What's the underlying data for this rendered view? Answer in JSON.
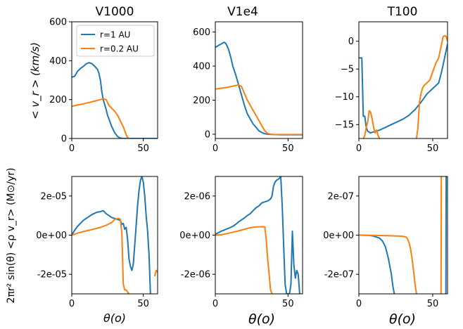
{
  "chart_data": [
    {
      "id": "v1000_vr",
      "type": "line",
      "title": "V1000",
      "ylabel": "< v_r > (km/s)",
      "xlabel": "",
      "xlim": [
        0,
        60
      ],
      "ylim": [
        0,
        600
      ],
      "xticks": [
        0,
        50
      ],
      "xtick_labels": [
        "0",
        "50"
      ],
      "yticks": [
        0,
        200,
        400,
        600
      ],
      "ytick_labels": [
        "0",
        "200",
        "400",
        "600"
      ],
      "legend": {
        "placement": "top-left",
        "entries": [
          "r=1 AU",
          "r=0.2 AU"
        ]
      },
      "series": [
        {
          "name": "r=1 AU",
          "color": "#1f77b4",
          "x": [
            0,
            2,
            4,
            6,
            8,
            10,
            12,
            14,
            16,
            18,
            19,
            20,
            21,
            22,
            23,
            24,
            25,
            26,
            27,
            28,
            30,
            32,
            34,
            36,
            40,
            50,
            60
          ],
          "y": [
            315,
            320,
            345,
            360,
            370,
            383,
            390,
            385,
            372,
            355,
            335,
            300,
            240,
            200,
            175,
            150,
            120,
            100,
            80,
            60,
            30,
            10,
            2,
            0,
            0,
            0,
            0
          ]
        },
        {
          "name": "r=0.2 AU",
          "color": "#ff7f0e",
          "x": [
            0,
            4,
            8,
            12,
            16,
            20,
            22,
            24,
            25,
            26,
            28,
            30,
            32,
            34,
            36,
            37,
            38,
            39,
            40
          ],
          "y": [
            165,
            172,
            178,
            185,
            192,
            200,
            205,
            200,
            185,
            170,
            155,
            140,
            120,
            90,
            60,
            40,
            20,
            5,
            0
          ]
        }
      ]
    },
    {
      "id": "v1e4_vr",
      "type": "line",
      "title": "V1e4",
      "xlabel": "",
      "xlim": [
        0,
        60
      ],
      "ylim": [
        -25,
        660
      ],
      "xticks": [
        0,
        50
      ],
      "xtick_labels": [
        "0",
        "50"
      ],
      "yticks": [
        0,
        200,
        400,
        600
      ],
      "ytick_labels": [
        "0",
        "200",
        "400",
        "600"
      ],
      "series": [
        {
          "name": "r=1 AU",
          "color": "#1f77b4",
          "x": [
            0,
            2,
            4,
            6,
            7,
            8,
            9,
            10,
            11,
            12,
            14,
            16,
            18,
            20,
            22,
            24,
            26,
            28,
            30,
            32,
            34,
            36,
            40,
            45,
            60
          ],
          "y": [
            510,
            520,
            530,
            540,
            535,
            520,
            500,
            470,
            440,
            400,
            350,
            290,
            230,
            170,
            120,
            90,
            60,
            40,
            20,
            10,
            3,
            0,
            -2,
            -3,
            -3
          ]
        },
        {
          "name": "r=0.2 AU",
          "color": "#ff7f0e",
          "x": [
            0,
            4,
            8,
            12,
            16,
            18,
            20,
            22,
            24,
            26,
            28,
            30,
            32,
            34,
            36,
            38,
            40,
            45,
            60
          ],
          "y": [
            265,
            270,
            275,
            282,
            290,
            280,
            240,
            200,
            170,
            140,
            110,
            80,
            50,
            20,
            5,
            0,
            -2,
            -2,
            -2
          ]
        }
      ]
    },
    {
      "id": "t100_vr",
      "type": "line",
      "title": "T100",
      "xlabel": "",
      "xlim": [
        0,
        60
      ],
      "ylim": [
        -17.5,
        3.5
      ],
      "xticks": [
        0,
        50
      ],
      "xtick_labels": [
        "0",
        "50"
      ],
      "yticks": [
        0,
        -5,
        -10,
        -15
      ],
      "ytick_labels": [
        "0",
        "−5",
        "−10",
        "−15"
      ],
      "series": [
        {
          "name": "r=1 AU",
          "color": "#1f77b4",
          "x": [
            0,
            2,
            3,
            4,
            5,
            6,
            8,
            10,
            14,
            18,
            22,
            26,
            30,
            34,
            38,
            42,
            46,
            50,
            54,
            56,
            58,
            60
          ],
          "y": [
            -3,
            -3,
            -13.5,
            -13.5,
            -15.5,
            -16.2,
            -16.5,
            -16.3,
            -16.0,
            -15.5,
            -15.0,
            -14.5,
            -14.0,
            -13.3,
            -12.3,
            -11.0,
            -9.5,
            -8.5,
            -7.5,
            -5.5,
            -3,
            -0.5
          ]
        },
        {
          "name": "r=0.2 AU",
          "color": "#ff7f0e",
          "x": [
            3,
            4,
            5,
            6,
            7,
            8,
            9,
            10,
            11,
            12,
            13,
            14
          ],
          "y": [
            -17.5,
            -17,
            -15.5,
            -14.5,
            -12.5,
            -12.8,
            -14,
            -15.5,
            -16.5,
            -16,
            -17,
            -17.5
          ]
        },
        {
          "name": "r=0.2 AU",
          "color": "#ff7f0e",
          "x": [
            39,
            40,
            41,
            42,
            43,
            44,
            46,
            48,
            50,
            52,
            54,
            56,
            57,
            58,
            59,
            60
          ],
          "y": [
            -17.5,
            -15.5,
            -11,
            -9.5,
            -8.5,
            -8,
            -7.5,
            -7,
            -5.5,
            -4,
            -3,
            -0.5,
            0.8,
            1,
            0.9,
            0
          ]
        }
      ]
    },
    {
      "id": "v1000_mflux",
      "type": "line",
      "ylabel": "2πr² sin(θ) <ρ v_r> (M⊙/yr)",
      "xlabel": "θ(o)",
      "xlim": [
        0,
        60
      ],
      "ylim": [
        -3e-05,
        3e-05
      ],
      "xticks": [
        0,
        50
      ],
      "xtick_labels": [
        "0",
        "50"
      ],
      "yticks": [
        2e-05,
        0,
        -2e-05
      ],
      "ytick_labels": [
        "2e-05",
        "0e+00",
        "-2e-05"
      ],
      "series": [
        {
          "name": "r=1 AU",
          "color": "#1f77b4",
          "x": [
            0,
            2,
            4,
            6,
            8,
            10,
            12,
            14,
            16,
            18,
            20,
            22,
            24,
            26,
            28,
            30,
            32,
            34,
            35,
            36,
            37,
            38,
            39,
            40,
            41,
            42,
            43,
            44,
            45,
            46,
            47,
            48,
            49,
            50,
            51,
            52,
            53,
            54,
            55
          ],
          "y": [
            0,
            2.5e-06,
            4.5e-06,
            6e-06,
            7.5e-06,
            8.5e-06,
            9.5e-06,
            1.05e-05,
            1.12e-05,
            1.18e-05,
            1.2e-05,
            1.25e-05,
            1.1e-05,
            1e-05,
            9e-06,
            8.5e-06,
            8e-06,
            7.5e-06,
            5.5e-06,
            6e-06,
            3e-06,
            4e-06,
            -2e-06,
            -1.2e-05,
            -1.6e-05,
            -1.8e-05,
            -1.5e-05,
            -5e-06,
            5e-06,
            1.5e-05,
            2.3e-05,
            2.8e-05,
            3e-05,
            2.7e-05,
            2e-05,
            1e-05,
            2e-06,
            -1e-05,
            -3e-05
          ]
        },
        {
          "name": "r=0.2 AU",
          "color": "#ff7f0e",
          "x": [
            0,
            4,
            8,
            12,
            16,
            20,
            24,
            28,
            30,
            32,
            33,
            34,
            35,
            36,
            37,
            38,
            39,
            40
          ],
          "y": [
            0,
            1e-06,
            1.8e-06,
            2.5e-06,
            3.2e-06,
            4e-06,
            5e-06,
            6.5e-06,
            8e-06,
            8.5e-06,
            8.5e-06,
            8e-06,
            1e-06,
            -2.5e-05,
            -2.8e-05,
            -2.8e-05,
            -2.9e-05,
            -3e-05
          ]
        },
        {
          "name": "r=0.2 AU",
          "color": "#ff7f0e",
          "x": [
            58,
            59,
            60
          ],
          "y": [
            -2.1e-05,
            -1.8e-05,
            -1.9e-05
          ]
        }
      ]
    },
    {
      "id": "v1e4_mflux",
      "type": "line",
      "xlabel": "θ(o)",
      "xlim": [
        0,
        60
      ],
      "ylim": [
        -3e-06,
        3e-06
      ],
      "xticks": [
        0,
        50
      ],
      "xtick_labels": [
        "0",
        "50"
      ],
      "yticks": [
        2e-06,
        0,
        -2e-06
      ],
      "ytick_labels": [
        "2e-06",
        "0e+00",
        "-2e-06"
      ],
      "series": [
        {
          "name": "r=1 AU",
          "color": "#1f77b4",
          "x": [
            0,
            2,
            4,
            6,
            8,
            10,
            12,
            14,
            16,
            18,
            20,
            22,
            24,
            26,
            28,
            30,
            32,
            34,
            36,
            38,
            39,
            40,
            41,
            42,
            43,
            44,
            45,
            46,
            47,
            48,
            49,
            50,
            51,
            52,
            53,
            54,
            55,
            56,
            57,
            58
          ],
          "y": [
            5e-08,
            1.2e-07,
            2e-07,
            2.6e-07,
            3.2e-07,
            3.8e-07,
            4.5e-07,
            5.5e-07,
            6.8e-07,
            7.8e-07,
            8.8e-07,
            1e-06,
            1.1e-06,
            1.25e-06,
            1.4e-06,
            1.5e-06,
            1.65e-06,
            1.7e-06,
            1.75e-06,
            1.85e-06,
            2e-06,
            2.5e-06,
            2.7e-06,
            2.8e-06,
            2.85e-06,
            2.9e-06,
            3e-06,
            1.5e-06,
            -5e-07,
            -2.5e-06,
            -3e-06,
            -3e-06,
            -3e-06,
            -2.5e-06,
            2e-07,
            -1.5e-06,
            -2.2e-06,
            -1.8e-06,
            -2e-06,
            -3e-06
          ]
        },
        {
          "name": "r=0.2 AU",
          "color": "#ff7f0e",
          "x": [
            0,
            4,
            8,
            12,
            16,
            20,
            24,
            28,
            30,
            32,
            34,
            35,
            36,
            37,
            38,
            39
          ],
          "y": [
            0,
            2e-08,
            8e-08,
            1.5e-07,
            2.2e-07,
            3e-07,
            3.8e-07,
            4.2e-07,
            4.2e-07,
            4.3e-07,
            4.2e-07,
            -2e-07,
            -1.2e-06,
            -2e-06,
            -2.8e-06,
            -3e-06
          ]
        }
      ]
    },
    {
      "id": "t100_mflux",
      "type": "line",
      "xlabel": "θ(o)",
      "xlim": [
        0,
        60
      ],
      "ylim": [
        -3e-07,
        3e-07
      ],
      "xticks": [
        0,
        50
      ],
      "xtick_labels": [
        "0",
        "50"
      ],
      "yticks": [
        2e-07,
        0,
        -2e-07
      ],
      "ytick_labels": [
        "2e-07",
        "0e+00",
        "-2e-07"
      ],
      "series": [
        {
          "name": "r=1 AU",
          "color": "#1f77b4",
          "x": [
            0,
            2,
            4,
            6,
            8,
            10,
            12,
            14,
            16,
            18,
            20,
            22,
            23,
            24
          ],
          "y": [
            0,
            -1e-10,
            -4e-10,
            -1e-09,
            -2e-09,
            -5e-09,
            -1e-08,
            -1.5e-08,
            -3e-08,
            -6e-08,
            -1.2e-07,
            -2e-07,
            -2.6e-07,
            -3e-07
          ]
        },
        {
          "name": "r=0.2 AU",
          "color": "#ff7f0e",
          "x": [
            0,
            4,
            8,
            12,
            16,
            20,
            24,
            28,
            30,
            32,
            33,
            34,
            35,
            36,
            37,
            38,
            39
          ],
          "y": [
            0,
            -5e-10,
            -1e-09,
            -1.5e-09,
            -2e-09,
            -3e-09,
            -4e-09,
            -5e-09,
            -6e-09,
            -1e-08,
            -2e-08,
            -4e-08,
            -7e-08,
            -1.2e-07,
            -1.8e-07,
            -2.5e-07,
            -3e-07
          ]
        },
        {
          "name": "r=0.2 AU",
          "color": "#ff7f0e",
          "x": [
            55.6,
            55.8
          ],
          "y": [
            -3e-07,
            3e-07
          ]
        },
        {
          "name": "r=1 AU",
          "color": "#1f77b4",
          "x": [
            58.9,
            59.1
          ],
          "y": [
            -3e-07,
            3e-07
          ]
        }
      ]
    }
  ]
}
